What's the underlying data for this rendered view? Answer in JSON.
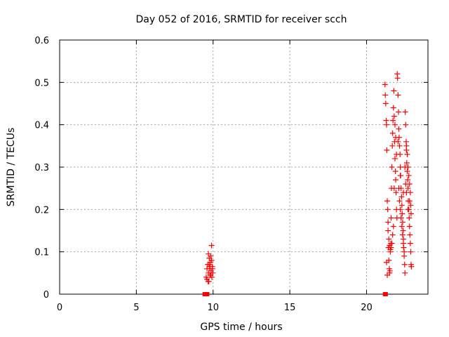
{
  "chart_data": {
    "type": "scatter",
    "title": "Day 052 of 2016, SRMTID for receiver scch",
    "xlabel": "GPS time / hours",
    "ylabel": "SRMTID / TECUs",
    "xlim": [
      0,
      24
    ],
    "ylim": [
      0,
      0.6
    ],
    "xticks": [
      "0",
      "5",
      "10",
      "15",
      "20"
    ],
    "yticks": [
      "0",
      "0.1",
      "0.2",
      "0.3",
      "0.4",
      "0.5",
      "0.6"
    ],
    "grid": true,
    "legend": "none",
    "marker": "plus",
    "color": "#ff0000",
    "series": [
      {
        "points": [
          [
            9.45,
            0
          ],
          [
            9.55,
            0
          ],
          [
            9.62,
            0
          ],
          [
            21.2,
            0
          ],
          [
            21.25,
            0
          ],
          [
            9.55,
            0.04
          ],
          [
            9.6,
            0.035
          ],
          [
            9.65,
            0.07
          ],
          [
            9.7,
            0.05
          ],
          [
            9.72,
            0.03
          ],
          [
            9.75,
            0.085
          ],
          [
            9.78,
            0.06
          ],
          [
            9.8,
            0.045
          ],
          [
            9.82,
            0.075
          ],
          [
            9.85,
            0.09
          ],
          [
            9.88,
            0.055
          ],
          [
            9.9,
            0.115
          ],
          [
            9.92,
            0.04
          ],
          [
            9.95,
            0.065
          ],
          [
            9.98,
            0.05
          ],
          [
            9.6,
            0.06
          ],
          [
            9.68,
            0.03
          ],
          [
            9.74,
            0.07
          ],
          [
            9.84,
            0.045
          ],
          [
            9.9,
            0.08
          ],
          [
            9.96,
            0.06
          ],
          [
            9.7,
            0.095
          ],
          [
            9.8,
            0.065
          ],
          [
            21.2,
            0.495
          ],
          [
            21.22,
            0.47
          ],
          [
            21.25,
            0.45
          ],
          [
            21.28,
            0.41
          ],
          [
            21.3,
            0.4
          ],
          [
            21.32,
            0.34
          ],
          [
            21.35,
            0.22
          ],
          [
            21.38,
            0.2
          ],
          [
            21.4,
            0.15
          ],
          [
            21.42,
            0.11
          ],
          [
            21.45,
            0.08
          ],
          [
            21.48,
            0.06
          ],
          [
            21.5,
            0.05
          ],
          [
            21.52,
            0.055
          ],
          [
            21.55,
            0.1
          ],
          [
            21.58,
            0.12
          ],
          [
            21.6,
            0.18
          ],
          [
            21.62,
            0.25
          ],
          [
            21.65,
            0.3
          ],
          [
            21.68,
            0.35
          ],
          [
            21.7,
            0.38
          ],
          [
            21.72,
            0.41
          ],
          [
            21.75,
            0.44
          ],
          [
            21.78,
            0.48
          ],
          [
            21.8,
            0.42
          ],
          [
            21.82,
            0.36
          ],
          [
            21.85,
            0.32
          ],
          [
            21.88,
            0.29
          ],
          [
            21.9,
            0.27
          ],
          [
            21.92,
            0.24
          ],
          [
            21.95,
            0.2
          ],
          [
            21.98,
            0.18
          ],
          [
            22.0,
            0.52
          ],
          [
            22.02,
            0.51
          ],
          [
            22.05,
            0.47
          ],
          [
            22.08,
            0.43
          ],
          [
            22.1,
            0.39
          ],
          [
            22.12,
            0.37
          ],
          [
            22.15,
            0.35
          ],
          [
            22.18,
            0.33
          ],
          [
            22.2,
            0.3
          ],
          [
            22.22,
            0.28
          ],
          [
            22.25,
            0.25
          ],
          [
            22.28,
            0.23
          ],
          [
            22.3,
            0.21
          ],
          [
            22.32,
            0.19
          ],
          [
            22.35,
            0.17
          ],
          [
            22.38,
            0.15
          ],
          [
            22.4,
            0.13
          ],
          [
            22.42,
            0.11
          ],
          [
            22.45,
            0.09
          ],
          [
            22.48,
            0.07
          ],
          [
            22.5,
            0.05
          ],
          [
            22.52,
            0.43
          ],
          [
            22.55,
            0.4
          ],
          [
            22.58,
            0.36
          ],
          [
            22.6,
            0.34
          ],
          [
            22.62,
            0.31
          ],
          [
            22.65,
            0.29
          ],
          [
            22.68,
            0.27
          ],
          [
            22.7,
            0.25
          ],
          [
            22.72,
            0.22
          ],
          [
            22.75,
            0.2
          ],
          [
            22.78,
            0.18
          ],
          [
            22.8,
            0.16
          ],
          [
            22.82,
            0.14
          ],
          [
            22.85,
            0.12
          ],
          [
            22.88,
            0.1
          ],
          [
            22.9,
            0.07
          ],
          [
            22.92,
            0.065
          ],
          [
            22.6,
            0.35
          ],
          [
            22.65,
            0.33
          ],
          [
            22.7,
            0.3
          ],
          [
            22.75,
            0.28
          ],
          [
            22.8,
            0.26
          ],
          [
            22.85,
            0.24
          ],
          [
            22.88,
            0.21
          ],
          [
            22.9,
            0.19
          ],
          [
            21.6,
            0.11
          ],
          [
            21.65,
            0.12
          ],
          [
            21.7,
            0.14
          ],
          [
            21.75,
            0.16
          ],
          [
            21.55,
            0.105
          ],
          [
            21.5,
            0.115
          ],
          [
            21.45,
            0.13
          ],
          [
            21.4,
            0.17
          ],
          [
            22.1,
            0.25
          ],
          [
            22.15,
            0.22
          ],
          [
            22.2,
            0.2
          ],
          [
            22.25,
            0.18
          ],
          [
            22.3,
            0.16
          ],
          [
            22.35,
            0.14
          ],
          [
            22.4,
            0.12
          ],
          [
            22.45,
            0.1
          ],
          [
            21.95,
            0.33
          ],
          [
            21.9,
            0.37
          ],
          [
            21.85,
            0.4
          ],
          [
            22.05,
            0.36
          ],
          [
            22.55,
            0.26
          ],
          [
            22.6,
            0.24
          ],
          [
            22.7,
            0.2
          ],
          [
            22.5,
            0.3
          ],
          [
            21.3,
            0.075
          ],
          [
            21.35,
            0.045
          ],
          [
            21.8,
            0.25
          ],
          [
            22.2,
            0.28
          ],
          [
            22.4,
            0.24
          ],
          [
            22.8,
            0.22
          ]
        ]
      }
    ]
  }
}
